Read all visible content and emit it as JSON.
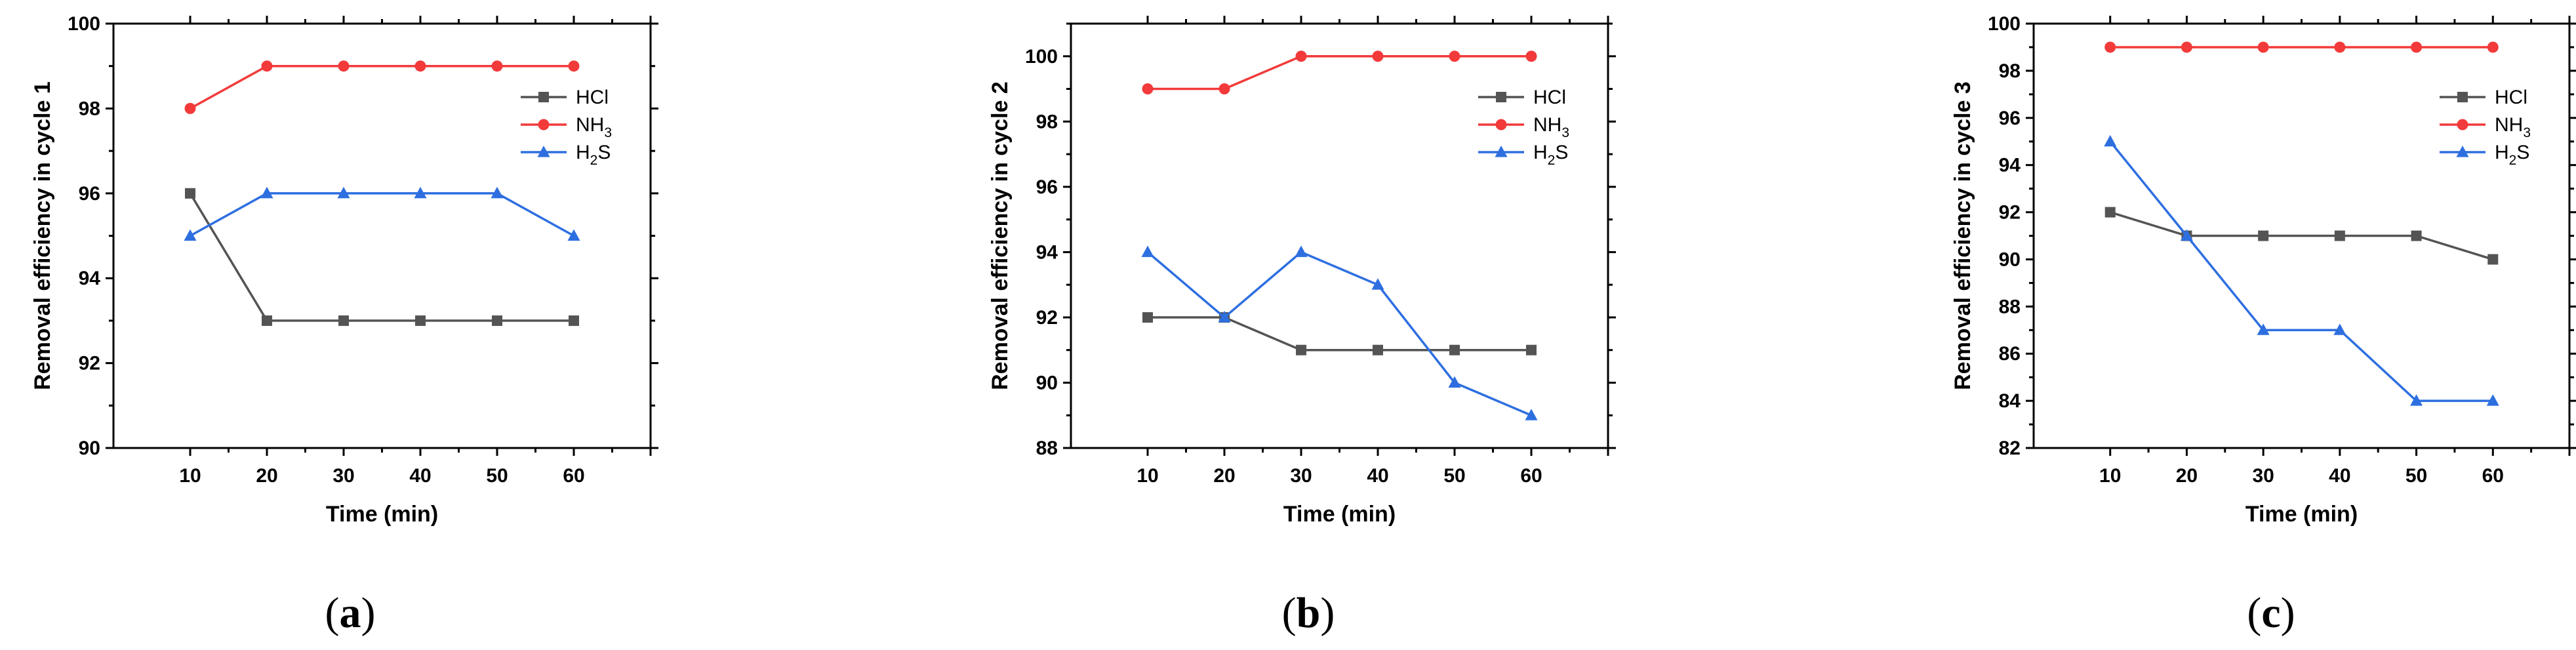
{
  "chart_data": [
    {
      "type": "line",
      "panel_label": "a",
      "x": [
        10,
        20,
        30,
        40,
        50,
        60
      ],
      "xlabel": "Time (min)",
      "ylabel": "Removal efficiency in cycle 1",
      "ylim": [
        90,
        100
      ],
      "yticks": [
        90,
        92,
        94,
        96,
        98,
        100
      ],
      "xticks": [
        10,
        20,
        30,
        40,
        50,
        60
      ],
      "legend_position": "top-right",
      "series": [
        {
          "name": "HCl",
          "label_main": "HCl",
          "label_sub": "",
          "label_tail": "",
          "color": "#545454",
          "marker": "square",
          "values": [
            96,
            93,
            93,
            93,
            93,
            93
          ]
        },
        {
          "name": "NH3",
          "label_main": "NH",
          "label_sub": "3",
          "label_tail": "",
          "color": "#f23a3a",
          "marker": "circle",
          "values": [
            98,
            99,
            99,
            99,
            99,
            99
          ]
        },
        {
          "name": "H2S",
          "label_main": "H",
          "label_sub": "2",
          "label_tail": "S",
          "color": "#2e6fe0",
          "marker": "triangle",
          "values": [
            95,
            96,
            96,
            96,
            96,
            95
          ]
        }
      ]
    },
    {
      "type": "line",
      "panel_label": "b",
      "x": [
        10,
        20,
        30,
        40,
        50,
        60
      ],
      "xlabel": "Time (min)",
      "ylabel": "Removal efficiency in cycle 2",
      "ylim": [
        88,
        101
      ],
      "yticks": [
        88,
        90,
        92,
        94,
        96,
        98,
        100
      ],
      "xticks": [
        10,
        20,
        30,
        40,
        50,
        60
      ],
      "legend_position": "top-right",
      "series": [
        {
          "name": "HCl",
          "label_main": "HCl",
          "label_sub": "",
          "label_tail": "",
          "color": "#545454",
          "marker": "square",
          "values": [
            92,
            92,
            91,
            91,
            91,
            91
          ]
        },
        {
          "name": "NH3",
          "label_main": "NH",
          "label_sub": "3",
          "label_tail": "",
          "color": "#f23a3a",
          "marker": "circle",
          "values": [
            99,
            99,
            100,
            100,
            100,
            100
          ]
        },
        {
          "name": "H2S",
          "label_main": "H",
          "label_sub": "2",
          "label_tail": "S",
          "color": "#2e6fe0",
          "marker": "triangle",
          "values": [
            94,
            92,
            94,
            93,
            90,
            89
          ]
        }
      ]
    },
    {
      "type": "line",
      "panel_label": "c",
      "x": [
        10,
        20,
        30,
        40,
        50,
        60
      ],
      "xlabel": "Time (min)",
      "ylabel": "Removal efficiency in cycle 3",
      "ylim": [
        82,
        100
      ],
      "yticks": [
        82,
        84,
        86,
        88,
        90,
        92,
        94,
        96,
        98,
        100
      ],
      "xticks": [
        10,
        20,
        30,
        40,
        50,
        60
      ],
      "legend_position": "top-right",
      "series": [
        {
          "name": "HCl",
          "label_main": "HCl",
          "label_sub": "",
          "label_tail": "",
          "color": "#545454",
          "marker": "square",
          "values": [
            92,
            91,
            91,
            91,
            91,
            90
          ]
        },
        {
          "name": "NH3",
          "label_main": "NH",
          "label_sub": "3",
          "label_tail": "",
          "color": "#f23a3a",
          "marker": "circle",
          "values": [
            99,
            99,
            99,
            99,
            99,
            99
          ]
        },
        {
          "name": "H2S",
          "label_main": "H",
          "label_sub": "2",
          "label_tail": "S",
          "color": "#2e6fe0",
          "marker": "triangle",
          "values": [
            95,
            91,
            87,
            87,
            84,
            84
          ]
        }
      ]
    }
  ]
}
